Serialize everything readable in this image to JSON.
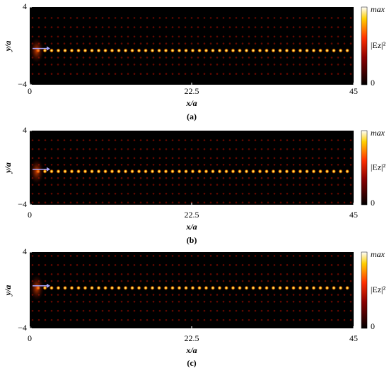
{
  "chart_data": [
    {
      "type": "heatmap",
      "panel_label": "(a)",
      "xlabel": "x/a",
      "ylabel": "y/a",
      "xlim": [
        0,
        45
      ],
      "xticks": [
        0,
        22.5,
        45
      ],
      "ylim": [
        -4,
        4
      ],
      "yticks": [
        {
          "value": -4,
          "label": "−4"
        },
        4
      ],
      "colorbar_labels": [
        "max",
        "|Ez|²",
        "0"
      ]
    },
    {
      "type": "heatmap",
      "panel_label": "(b)",
      "xlabel": "x/a",
      "ylabel": "y/a",
      "xlim": [
        0,
        45
      ],
      "xticks": [
        0,
        22.5,
        45
      ],
      "ylim": [
        -4,
        4
      ],
      "yticks": [
        {
          "value": -4,
          "label": "−4"
        },
        4
      ],
      "colorbar_labels": [
        "max",
        "|Ez|²",
        "0"
      ]
    },
    {
      "type": "heatmap",
      "panel_label": "(c)",
      "xlabel": "x/a",
      "ylabel": "y/a",
      "xlim": [
        0,
        45
      ],
      "xticks": [
        0,
        22.5,
        45
      ],
      "ylim": [
        -4,
        4
      ],
      "yticks": [
        {
          "value": -4,
          "label": "−4"
        },
        4
      ],
      "colorbar_labels": [
        "max",
        "|Ez|²",
        "0"
      ]
    }
  ]
}
